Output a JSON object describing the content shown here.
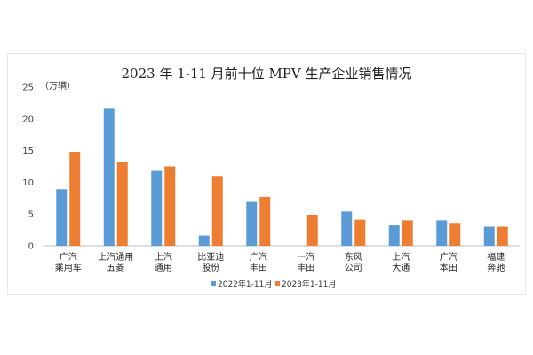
{
  "chart_data": {
    "type": "bar",
    "title": "2023 年 1-11 月前十位 MPV 生产企业销售情况",
    "ylabel": "（万辆）",
    "xlabel": "",
    "ylim": [
      0,
      25
    ],
    "yticks": [
      0,
      5,
      10,
      15,
      20,
      25
    ],
    "grid": false,
    "legend_position": "bottom",
    "categories": [
      [
        "广汽",
        "乘用车"
      ],
      [
        "上汽通用",
        "五菱"
      ],
      [
        "上汽",
        "通用"
      ],
      [
        "比亚迪",
        "股份"
      ],
      [
        "广汽",
        "丰田"
      ],
      [
        "一汽",
        "丰田"
      ],
      [
        "东风",
        "公司"
      ],
      [
        "上汽",
        "大通"
      ],
      [
        "广汽",
        "本田"
      ],
      [
        "福建",
        "奔驰"
      ]
    ],
    "series": [
      {
        "name": "2022年1-11月",
        "color": "#5b9bd5",
        "values": [
          8.9,
          21.6,
          11.8,
          1.6,
          6.9,
          0,
          5.4,
          3.2,
          4.0,
          3.0
        ]
      },
      {
        "name": "2023年1-11月",
        "color": "#ed7d31",
        "values": [
          14.8,
          13.2,
          12.5,
          11.0,
          7.7,
          4.9,
          4.1,
          4.0,
          3.6,
          3.0
        ]
      }
    ]
  }
}
